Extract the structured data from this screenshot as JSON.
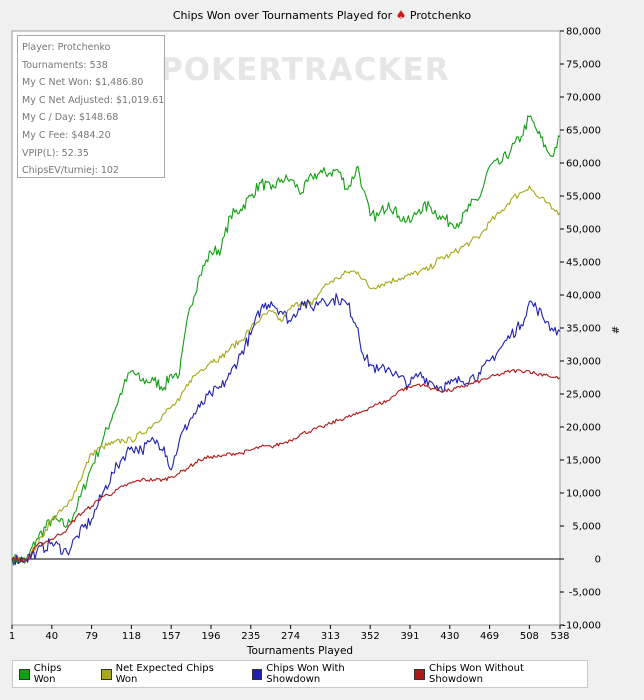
{
  "title": {
    "prefix": "Chips Won over Tournaments Played for",
    "player": "Protchenko",
    "icon": "spade-icon"
  },
  "stats": [
    "Player: Protchenko",
    "Tournaments: 538",
    "My C Net Won: $1,486.80",
    "My C Net Adjusted: $1,019.61",
    "My C / Day: $148.68",
    "My C Fee: $484.20",
    "VPIP(L): 52.35",
    "ChipsEV/turniej: 102"
  ],
  "watermark": "POKERTRACKER",
  "chart_data": {
    "type": "line",
    "xlabel": "Tournaments Played",
    "ylabel": "#",
    "xlim": [
      1,
      538
    ],
    "ylim": [
      -10000,
      80000
    ],
    "x_ticks": [
      1,
      40,
      79,
      118,
      157,
      196,
      235,
      274,
      313,
      352,
      391,
      430,
      469,
      508,
      538
    ],
    "y_ticks": [
      -10000,
      -5000,
      0,
      5000,
      10000,
      15000,
      20000,
      25000,
      30000,
      35000,
      40000,
      45000,
      50000,
      55000,
      60000,
      65000,
      70000,
      75000,
      80000
    ],
    "y_tick_labels": [
      "-10,000",
      "-5,000",
      "0",
      "5,000",
      "10,000",
      "15,000",
      "20,000",
      "25,000",
      "30,000",
      "35,000",
      "40,000",
      "45,000",
      "50,000",
      "55,000",
      "60,000",
      "65,000",
      "70,000",
      "75,000",
      "80,000"
    ],
    "grid": false,
    "legend_position": "bottom",
    "series": [
      {
        "name": "Chips Won",
        "color": "#11a011",
        "points": [
          [
            1,
            0
          ],
          [
            15,
            -300
          ],
          [
            25,
            3000
          ],
          [
            40,
            6000
          ],
          [
            55,
            5000
          ],
          [
            65,
            8000
          ],
          [
            79,
            14000
          ],
          [
            90,
            18000
          ],
          [
            100,
            22000
          ],
          [
            110,
            26000
          ],
          [
            118,
            28500
          ],
          [
            128,
            27000
          ],
          [
            140,
            27000
          ],
          [
            150,
            26000
          ],
          [
            157,
            28000
          ],
          [
            165,
            28000
          ],
          [
            175,
            38000
          ],
          [
            185,
            43000
          ],
          [
            196,
            46500
          ],
          [
            206,
            47000
          ],
          [
            215,
            52000
          ],
          [
            225,
            53000
          ],
          [
            235,
            55000
          ],
          [
            245,
            57000
          ],
          [
            255,
            56000
          ],
          [
            265,
            57500
          ],
          [
            274,
            57500
          ],
          [
            285,
            55500
          ],
          [
            295,
            58000
          ],
          [
            305,
            58500
          ],
          [
            313,
            58500
          ],
          [
            320,
            59000
          ],
          [
            330,
            56000
          ],
          [
            340,
            59500
          ],
          [
            345,
            56000
          ],
          [
            352,
            52000
          ],
          [
            360,
            52000
          ],
          [
            370,
            54000
          ],
          [
            380,
            52000
          ],
          [
            391,
            51000
          ],
          [
            400,
            53000
          ],
          [
            410,
            53500
          ],
          [
            420,
            52000
          ],
          [
            430,
            51000
          ],
          [
            440,
            51000
          ],
          [
            450,
            53500
          ],
          [
            460,
            55000
          ],
          [
            469,
            59500
          ],
          [
            480,
            60000
          ],
          [
            490,
            62000
          ],
          [
            500,
            64000
          ],
          [
            508,
            67000
          ],
          [
            515,
            65000
          ],
          [
            525,
            62000
          ],
          [
            530,
            61000
          ],
          [
            538,
            64000
          ]
        ]
      },
      {
        "name": "Net Expected Chips Won",
        "color": "#a8a818",
        "points": [
          [
            1,
            0
          ],
          [
            15,
            -200
          ],
          [
            25,
            2000
          ],
          [
            40,
            6000
          ],
          [
            55,
            8000
          ],
          [
            65,
            11000
          ],
          [
            79,
            16000
          ],
          [
            90,
            17000
          ],
          [
            100,
            17500
          ],
          [
            110,
            18000
          ],
          [
            118,
            18000
          ],
          [
            128,
            19000
          ],
          [
            140,
            20500
          ],
          [
            150,
            22000
          ],
          [
            157,
            23000
          ],
          [
            165,
            24000
          ],
          [
            175,
            27000
          ],
          [
            185,
            28500
          ],
          [
            196,
            30000
          ],
          [
            206,
            30500
          ],
          [
            215,
            32000
          ],
          [
            225,
            33000
          ],
          [
            235,
            35000
          ],
          [
            245,
            36500
          ],
          [
            255,
            37500
          ],
          [
            265,
            36000
          ],
          [
            274,
            38000
          ],
          [
            285,
            39000
          ],
          [
            295,
            38500
          ],
          [
            305,
            41000
          ],
          [
            313,
            42000
          ],
          [
            320,
            42500
          ],
          [
            330,
            43500
          ],
          [
            340,
            43500
          ],
          [
            352,
            41000
          ],
          [
            360,
            41500
          ],
          [
            370,
            42000
          ],
          [
            380,
            42500
          ],
          [
            391,
            43000
          ],
          [
            400,
            43500
          ],
          [
            410,
            44000
          ],
          [
            420,
            45500
          ],
          [
            430,
            46000
          ],
          [
            440,
            47000
          ],
          [
            450,
            48000
          ],
          [
            460,
            49000
          ],
          [
            469,
            51000
          ],
          [
            480,
            52500
          ],
          [
            490,
            54500
          ],
          [
            500,
            55500
          ],
          [
            508,
            56500
          ],
          [
            515,
            55000
          ],
          [
            525,
            54000
          ],
          [
            530,
            53000
          ],
          [
            538,
            52500
          ]
        ]
      },
      {
        "name": "Chips Won With Showdown",
        "color": "#2020b0",
        "points": [
          [
            1,
            0
          ],
          [
            15,
            0
          ],
          [
            25,
            1000
          ],
          [
            40,
            2500
          ],
          [
            55,
            1000
          ],
          [
            65,
            3500
          ],
          [
            79,
            6000
          ],
          [
            90,
            10000
          ],
          [
            100,
            13000
          ],
          [
            110,
            15500
          ],
          [
            118,
            17000
          ],
          [
            128,
            16500
          ],
          [
            140,
            18000
          ],
          [
            150,
            17000
          ],
          [
            157,
            13500
          ],
          [
            165,
            18000
          ],
          [
            175,
            21000
          ],
          [
            185,
            23000
          ],
          [
            196,
            25000
          ],
          [
            206,
            26000
          ],
          [
            215,
            28000
          ],
          [
            225,
            31000
          ],
          [
            235,
            34000
          ],
          [
            245,
            38000
          ],
          [
            255,
            39000
          ],
          [
            265,
            37500
          ],
          [
            274,
            36000
          ],
          [
            285,
            39000
          ],
          [
            295,
            38000
          ],
          [
            305,
            39500
          ],
          [
            313,
            39000
          ],
          [
            320,
            39500
          ],
          [
            330,
            38500
          ],
          [
            340,
            35000
          ],
          [
            345,
            31000
          ],
          [
            352,
            29500
          ],
          [
            360,
            28500
          ],
          [
            370,
            29000
          ],
          [
            380,
            27500
          ],
          [
            391,
            26500
          ],
          [
            400,
            28000
          ],
          [
            410,
            27000
          ],
          [
            420,
            26000
          ],
          [
            430,
            26500
          ],
          [
            440,
            27000
          ],
          [
            450,
            27500
          ],
          [
            460,
            28000
          ],
          [
            469,
            30000
          ],
          [
            480,
            32000
          ],
          [
            490,
            34000
          ],
          [
            500,
            35500
          ],
          [
            508,
            39000
          ],
          [
            515,
            38000
          ],
          [
            525,
            36000
          ],
          [
            530,
            35000
          ],
          [
            538,
            34500
          ]
        ]
      },
      {
        "name": "Chips Won Without Showdown",
        "color": "#b01818",
        "points": [
          [
            1,
            0
          ],
          [
            15,
            -200
          ],
          [
            25,
            2000
          ],
          [
            40,
            3000
          ],
          [
            55,
            4500
          ],
          [
            65,
            6500
          ],
          [
            79,
            8000
          ],
          [
            90,
            9500
          ],
          [
            100,
            10000
          ],
          [
            110,
            11000
          ],
          [
            118,
            11500
          ],
          [
            128,
            12000
          ],
          [
            140,
            12000
          ],
          [
            150,
            12000
          ],
          [
            157,
            12500
          ],
          [
            165,
            13000
          ],
          [
            175,
            14000
          ],
          [
            185,
            15000
          ],
          [
            196,
            15500
          ],
          [
            206,
            15500
          ],
          [
            215,
            16000
          ],
          [
            225,
            16000
          ],
          [
            235,
            16500
          ],
          [
            245,
            17000
          ],
          [
            255,
            17000
          ],
          [
            265,
            17500
          ],
          [
            274,
            18000
          ],
          [
            285,
            19000
          ],
          [
            295,
            19500
          ],
          [
            305,
            20000
          ],
          [
            313,
            20500
          ],
          [
            320,
            21000
          ],
          [
            330,
            21500
          ],
          [
            340,
            22000
          ],
          [
            352,
            23000
          ],
          [
            360,
            23500
          ],
          [
            370,
            24000
          ],
          [
            380,
            25500
          ],
          [
            391,
            26000
          ],
          [
            400,
            26500
          ],
          [
            410,
            26000
          ],
          [
            420,
            25500
          ],
          [
            430,
            25500
          ],
          [
            440,
            26000
          ],
          [
            450,
            26500
          ],
          [
            460,
            27000
          ],
          [
            469,
            27500
          ],
          [
            480,
            28000
          ],
          [
            490,
            28500
          ],
          [
            500,
            28500
          ],
          [
            508,
            28500
          ],
          [
            515,
            28000
          ],
          [
            525,
            28000
          ],
          [
            530,
            27500
          ],
          [
            538,
            27500
          ]
        ]
      }
    ]
  }
}
